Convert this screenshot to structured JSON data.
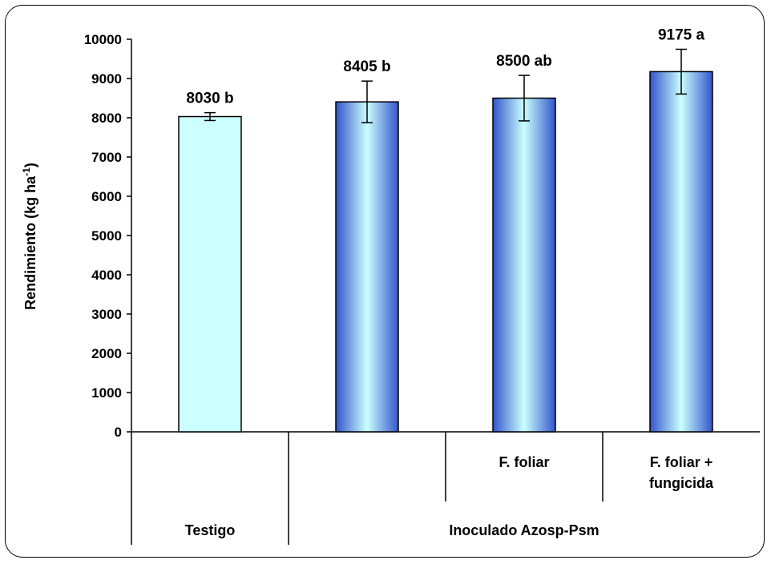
{
  "chart_data": {
    "type": "bar",
    "ylabel": "Rendimiento (kg ha",
    "ylabel_sup": "-1",
    "ylabel_close": ")",
    "ylim": [
      0,
      10000
    ],
    "yticks": [
      0,
      1000,
      2000,
      3000,
      4000,
      5000,
      6000,
      7000,
      8000,
      9000,
      10000
    ],
    "grid": false,
    "bars": [
      {
        "value": 8030,
        "error": 100,
        "label": "8030 b",
        "style": "plain"
      },
      {
        "value": 8405,
        "error": 530,
        "label": "8405 b",
        "style": "gradient"
      },
      {
        "value": 8500,
        "error": 580,
        "label": "8500 ab",
        "style": "gradient"
      },
      {
        "value": 9175,
        "error": 570,
        "label": "9175 a",
        "style": "gradient"
      }
    ],
    "subcategories": [
      "",
      "",
      "F. foliar",
      "F. foliar +\nfungicida"
    ],
    "groups": [
      {
        "label": "Testigo",
        "span": [
          0,
          0
        ]
      },
      {
        "label": "Inoculado Azosp-Psm",
        "span": [
          1,
          3
        ]
      }
    ]
  },
  "colors": {
    "plain_fill": "#ccffff",
    "gradient_edge": "#3355cc",
    "gradient_center": "#ccffff",
    "outline": "#000000"
  }
}
